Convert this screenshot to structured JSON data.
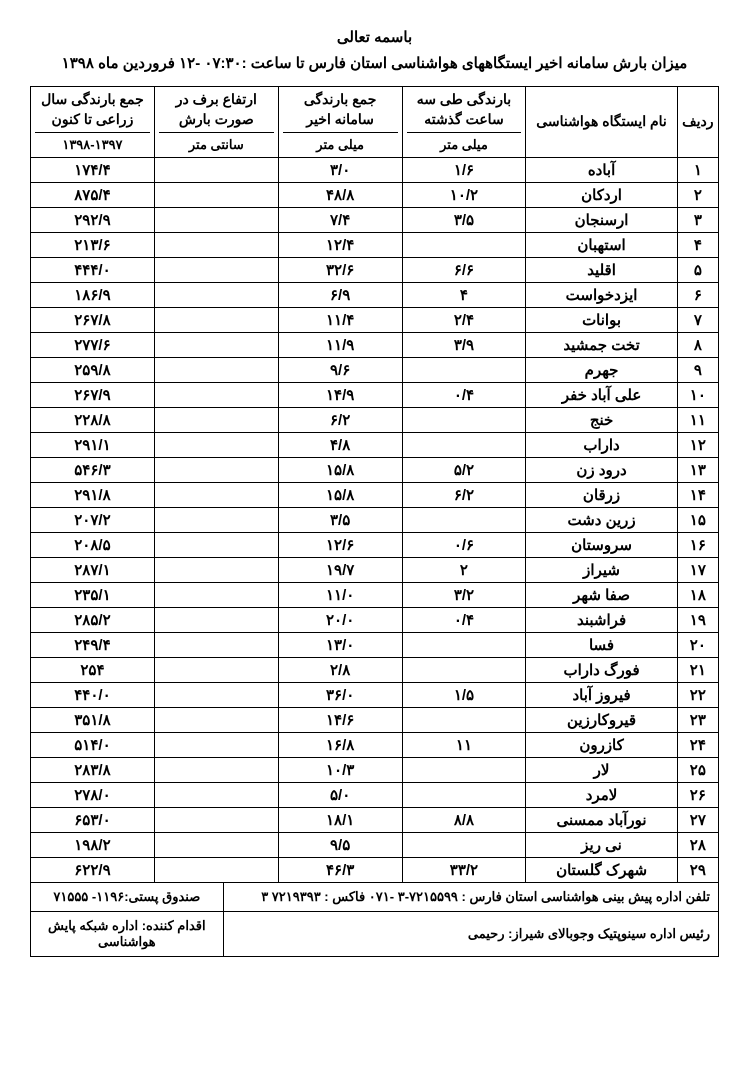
{
  "header": {
    "besm": "باسمه تعالی",
    "title": "میزان بارش سامانه اخیر ایستگاههای هواشناسی استان فارس تا ساعت :۰۷:۳۰ -۱۲ فروردین ماه ۱۳۹۸"
  },
  "columns": {
    "row": "ردیف",
    "station": "نام ایستگاه هواشناسی",
    "last3h": "بارندگی طی سه ساعت گذشته",
    "last3h_unit": "میلی متر",
    "samane": "جمع بارندگی سامانه اخیر",
    "samane_unit": "میلی متر",
    "snow": "ارتفاع برف در صورت بارش",
    "snow_unit": "سانتی متر",
    "year": "جمع بارندگی سال زراعی تا کنون",
    "year_unit": "۱۳۹۸-۱۳۹۷"
  },
  "rows": [
    {
      "n": "۱",
      "st": "آباده",
      "h3": "۱/۶",
      "sam": "۳/۰",
      "snow": "",
      "yr": "۱۷۴/۴"
    },
    {
      "n": "۲",
      "st": "اردکان",
      "h3": "۱۰/۲",
      "sam": "۴۸/۸",
      "snow": "",
      "yr": "۸۷۵/۴"
    },
    {
      "n": "۳",
      "st": "ارسنجان",
      "h3": "۳/۵",
      "sam": "۷/۴",
      "snow": "",
      "yr": "۲۹۲/۹"
    },
    {
      "n": "۴",
      "st": "استهبان",
      "h3": "",
      "sam": "۱۲/۴",
      "snow": "",
      "yr": "۲۱۳/۶"
    },
    {
      "n": "۵",
      "st": "اقلید",
      "h3": "۶/۶",
      "sam": "۳۲/۶",
      "snow": "",
      "yr": "۴۴۴/۰"
    },
    {
      "n": "۶",
      "st": "ایزدخواست",
      "h3": "۴",
      "sam": "۶/۹",
      "snow": "",
      "yr": "۱۸۶/۹"
    },
    {
      "n": "۷",
      "st": "بوانات",
      "h3": "۲/۴",
      "sam": "۱۱/۴",
      "snow": "",
      "yr": "۲۶۷/۸"
    },
    {
      "n": "۸",
      "st": "تخت جمشید",
      "h3": "۳/۹",
      "sam": "۱۱/۹",
      "snow": "",
      "yr": "۲۷۷/۶"
    },
    {
      "n": "۹",
      "st": "جهرم",
      "h3": "",
      "sam": "۹/۶",
      "snow": "",
      "yr": "۲۵۹/۸"
    },
    {
      "n": "۱۰",
      "st": "علی آباد خفر",
      "h3": "۰/۴",
      "sam": "۱۴/۹",
      "snow": "",
      "yr": "۲۶۷/۹"
    },
    {
      "n": "۱۱",
      "st": "خنج",
      "h3": "",
      "sam": "۶/۲",
      "snow": "",
      "yr": "۲۲۸/۸"
    },
    {
      "n": "۱۲",
      "st": "داراب",
      "h3": "",
      "sam": "۴/۸",
      "snow": "",
      "yr": "۲۹۱/۱"
    },
    {
      "n": "۱۳",
      "st": "درود زن",
      "h3": "۵/۲",
      "sam": "۱۵/۸",
      "snow": "",
      "yr": "۵۴۶/۳"
    },
    {
      "n": "۱۴",
      "st": "زرقان",
      "h3": "۶/۲",
      "sam": "۱۵/۸",
      "snow": "",
      "yr": "۲۹۱/۸"
    },
    {
      "n": "۱۵",
      "st": "زرین دشت",
      "h3": "",
      "sam": "۳/۵",
      "snow": "",
      "yr": "۲۰۷/۲"
    },
    {
      "n": "۱۶",
      "st": "سروستان",
      "h3": "۰/۶",
      "sam": "۱۲/۶",
      "snow": "",
      "yr": "۲۰۸/۵"
    },
    {
      "n": "۱۷",
      "st": "شیراز",
      "h3": "۲",
      "sam": "۱۹/۷",
      "snow": "",
      "yr": "۲۸۷/۱"
    },
    {
      "n": "۱۸",
      "st": "صفا شهر",
      "h3": "۳/۲",
      "sam": "۱۱/۰",
      "snow": "",
      "yr": "۲۳۵/۱"
    },
    {
      "n": "۱۹",
      "st": "فراشبند",
      "h3": "۰/۴",
      "sam": "۲۰/۰",
      "snow": "",
      "yr": "۲۸۵/۲"
    },
    {
      "n": "۲۰",
      "st": "فسا",
      "h3": "",
      "sam": "۱۳/۰",
      "snow": "",
      "yr": "۲۴۹/۴"
    },
    {
      "n": "۲۱",
      "st": "فورگ داراب",
      "h3": "",
      "sam": "۲/۸",
      "snow": "",
      "yr": "۲۵۴"
    },
    {
      "n": "۲۲",
      "st": "فیروز آباد",
      "h3": "۱/۵",
      "sam": "۳۶/۰",
      "snow": "",
      "yr": "۴۴۰/۰"
    },
    {
      "n": "۲۳",
      "st": "قیروکارزین",
      "h3": "",
      "sam": "۱۴/۶",
      "snow": "",
      "yr": "۳۵۱/۸"
    },
    {
      "n": "۲۴",
      "st": "کازرون",
      "h3": "۱۱",
      "sam": "۱۶/۸",
      "snow": "",
      "yr": "۵۱۴/۰"
    },
    {
      "n": "۲۵",
      "st": "لار",
      "h3": "",
      "sam": "۱۰/۳",
      "snow": "",
      "yr": "۲۸۳/۸"
    },
    {
      "n": "۲۶",
      "st": "لامرد",
      "h3": "",
      "sam": "۵/۰",
      "snow": "",
      "yr": "۲۷۸/۰"
    },
    {
      "n": "۲۷",
      "st": "نورآباد ممسنی",
      "h3": "۸/۸",
      "sam": "۱۸/۱",
      "snow": "",
      "yr": "۶۵۳/۰"
    },
    {
      "n": "۲۸",
      "st": "نی ریز",
      "h3": "",
      "sam": "۹/۵",
      "snow": "",
      "yr": "۱۹۸/۲"
    },
    {
      "n": "۲۹",
      "st": "شهرک گلستان",
      "h3": "۳۳/۲",
      "sam": "۴۶/۳",
      "snow": "",
      "yr": "۶۲۲/۹"
    }
  ],
  "footer": {
    "phone": "تلفن اداره پیش بینی هواشناسی استان فارس : ۷۲۱۵۵۹۹-۳ -۰۷۱   فاکس : ۷۲۱۹۳۹۳ ۳",
    "pobox": "صندوق پستی:۱۱۹۶- ۷۱۵۵۵",
    "chief": "رئیس اداره سینوپتیک وجوبالای شیراز: رحیمی",
    "action": "اقدام کننده: اداره شبکه پایش هواشناسی"
  }
}
